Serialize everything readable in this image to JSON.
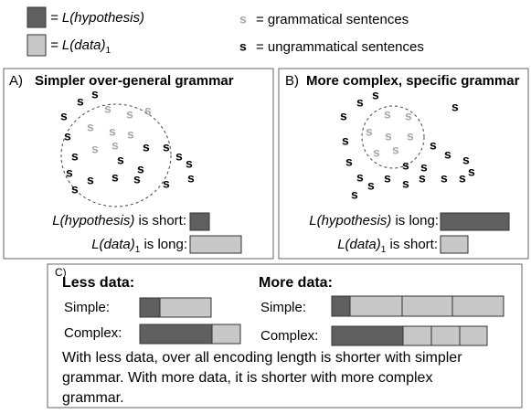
{
  "legend": {
    "hypothesis": "= L(hypothesis)",
    "data": "= L(data)",
    "data_sub": "1",
    "symbol": "s",
    "grammatical": "= grammatical sentences",
    "ungrammatical": "= ungrammatical sentences"
  },
  "panel_a": {
    "letter": "A)",
    "title": "Simpler over-general grammar",
    "hyp_label": "L(hypothesis)",
    "hyp_text": " is short:",
    "data_label": "L(data)",
    "data_sub": "1",
    "data_text": " is long:"
  },
  "panel_b": {
    "letter": "B)",
    "title": "More complex, specific grammar",
    "hyp_label": "L(hypothesis)",
    "hyp_text": " is long:",
    "data_label": "L(data)",
    "data_sub": "1",
    "data_text": " is short:"
  },
  "panel_c": {
    "letter": "C)",
    "less_title": "Less data:",
    "more_title": "More data:",
    "simple": "Simple:",
    "complex": "Complex:",
    "paragraph": [
      "With less data, over all encoding length is shorter with simpler",
      "grammar.  With more data, it is shorter with more complex",
      "grammar."
    ]
  }
}
